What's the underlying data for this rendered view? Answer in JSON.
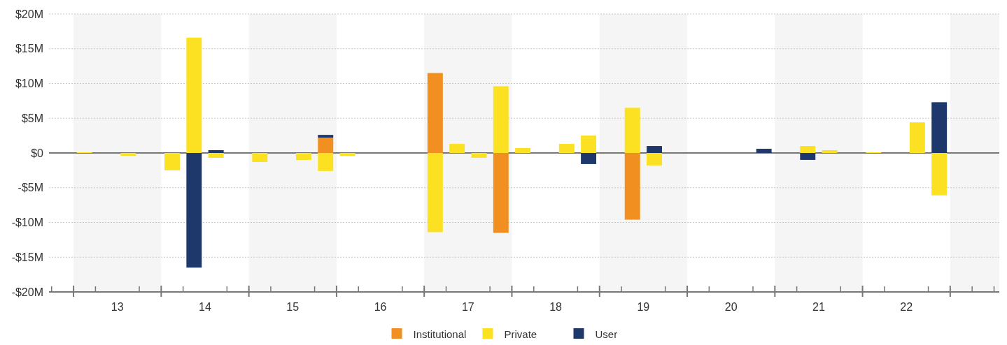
{
  "chart_data": {
    "type": "bar",
    "stacked": true,
    "x": [
      13.125,
      13.625,
      14.125,
      14.375,
      14.625,
      15.125,
      15.625,
      15.875,
      16.125,
      17.125,
      17.375,
      17.625,
      17.875,
      18.125,
      18.625,
      18.875,
      19.375,
      19.625,
      20.875,
      21.375,
      21.625,
      22.125,
      22.625,
      22.875
    ],
    "series": [
      {
        "name": "Institutional",
        "color": "#f18f21",
        "values": [
          null,
          null,
          null,
          null,
          null,
          null,
          null,
          2.2,
          null,
          11.5,
          null,
          null,
          -11.5,
          null,
          null,
          null,
          -9.6,
          null,
          null,
          null,
          null,
          null,
          null,
          null
        ]
      },
      {
        "name": "Private",
        "color": "#fbe122",
        "values": [
          0.1,
          -0.4,
          -2.5,
          16.6,
          -0.7,
          -1.3,
          -1.0,
          -2.6,
          -0.4,
          -11.4,
          1.3,
          -0.7,
          9.6,
          0.7,
          1.3,
          2.5,
          6.5,
          -1.8,
          null,
          1.0,
          0.4,
          0.1,
          4.4,
          -6.1
        ]
      },
      {
        "name": "User",
        "color": "#1f386b",
        "values": [
          null,
          null,
          null,
          -16.5,
          0.4,
          null,
          null,
          0.4,
          null,
          null,
          null,
          null,
          null,
          null,
          null,
          -1.6,
          null,
          1.0,
          0.6,
          -1.0,
          null,
          null,
          null,
          7.3
        ]
      }
    ],
    "xlim": [
      12.72,
      23.56
    ],
    "xticks": [
      {
        "value": 12.75,
        "label": null
      },
      {
        "value": 13,
        "label": null
      },
      {
        "value": 13.25,
        "label": null
      },
      {
        "value": 13.5,
        "label": "13"
      },
      {
        "value": 13.75,
        "label": null
      },
      {
        "value": 14,
        "label": null
      },
      {
        "value": 14.25,
        "label": null
      },
      {
        "value": 14.5,
        "label": "14"
      },
      {
        "value": 14.75,
        "label": null
      },
      {
        "value": 15,
        "label": null
      },
      {
        "value": 15.25,
        "label": null
      },
      {
        "value": 15.5,
        "label": "15"
      },
      {
        "value": 15.75,
        "label": null
      },
      {
        "value": 16,
        "label": null
      },
      {
        "value": 16.25,
        "label": null
      },
      {
        "value": 16.5,
        "label": "16"
      },
      {
        "value": 16.75,
        "label": null
      },
      {
        "value": 17,
        "label": null
      },
      {
        "value": 17.25,
        "label": null
      },
      {
        "value": 17.5,
        "label": "17"
      },
      {
        "value": 17.75,
        "label": null
      },
      {
        "value": 18,
        "label": null
      },
      {
        "value": 18.25,
        "label": null
      },
      {
        "value": 18.5,
        "label": "18"
      },
      {
        "value": 18.75,
        "label": null
      },
      {
        "value": 19,
        "label": null
      },
      {
        "value": 19.25,
        "label": null
      },
      {
        "value": 19.5,
        "label": "19"
      },
      {
        "value": 19.75,
        "label": null
      },
      {
        "value": 20,
        "label": null
      },
      {
        "value": 20.25,
        "label": null
      },
      {
        "value": 20.5,
        "label": "20"
      },
      {
        "value": 20.75,
        "label": null
      },
      {
        "value": 21,
        "label": null
      },
      {
        "value": 21.25,
        "label": null
      },
      {
        "value": 21.5,
        "label": "21"
      },
      {
        "value": 21.75,
        "label": null
      },
      {
        "value": 22,
        "label": null
      },
      {
        "value": 22.25,
        "label": null
      },
      {
        "value": 22.5,
        "label": "22"
      },
      {
        "value": 22.75,
        "label": null
      },
      {
        "value": 23,
        "label": null
      },
      {
        "value": 23.25,
        "label": null
      },
      {
        "value": 23.5,
        "label": null
      }
    ],
    "ylim": [
      -20,
      20
    ],
    "yticks": [
      {
        "value": -20,
        "label": "-$20M"
      },
      {
        "value": -15,
        "label": "-$15M"
      },
      {
        "value": -10,
        "label": "-$10M"
      },
      {
        "value": -5,
        "label": "-$5M"
      },
      {
        "value": 0,
        "label": "$0"
      },
      {
        "value": 5,
        "label": "$5M"
      },
      {
        "value": 10,
        "label": "$10M"
      },
      {
        "value": 15,
        "label": "$15M"
      },
      {
        "value": 20,
        "label": "$20M"
      }
    ],
    "grid": "y",
    "bands": [
      {
        "axis": "x",
        "from": 13,
        "to": 14,
        "color": "#f5f5f5"
      },
      {
        "axis": "x",
        "from": 15,
        "to": 16,
        "color": "#f5f5f5"
      },
      {
        "axis": "x",
        "from": 17,
        "to": 18,
        "color": "#f5f5f5"
      },
      {
        "axis": "x",
        "from": 19,
        "to": 20,
        "color": "#f5f5f5"
      },
      {
        "axis": "x",
        "from": 21,
        "to": 22,
        "color": "#f5f5f5"
      },
      {
        "axis": "x",
        "from": 23,
        "to": 23.56,
        "color": "#f5f5f5"
      }
    ],
    "ref_lines": [
      {
        "axis": "y",
        "value": 0,
        "color": "#777777"
      }
    ],
    "legend": "bottom"
  }
}
